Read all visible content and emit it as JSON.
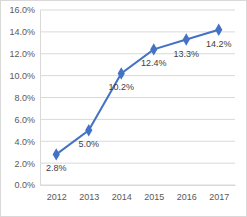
{
  "chart_data": {
    "type": "line",
    "categories": [
      "2012",
      "2013",
      "2014",
      "2015",
      "2016",
      "2017"
    ],
    "values": [
      2.8,
      5.0,
      10.2,
      12.4,
      13.3,
      14.2
    ],
    "value_labels": [
      "2.8%",
      "5.0%",
      "10.2%",
      "12.4%",
      "13.3%",
      "14.2%"
    ],
    "color": "#4472c4",
    "marker": "diamond",
    "ylim": [
      0,
      16
    ],
    "yticks": [
      {
        "value": 0,
        "label": "0.0%"
      },
      {
        "value": 2,
        "label": "2.0%"
      },
      {
        "value": 4,
        "label": "4.0%"
      },
      {
        "value": 6,
        "label": "6.0%"
      },
      {
        "value": 8,
        "label": "8.0%"
      },
      {
        "value": 10,
        "label": "10.0%"
      },
      {
        "value": 12,
        "label": "12.0%"
      },
      {
        "value": 14,
        "label": "14.0%"
      },
      {
        "value": 16,
        "label": "16.0%"
      }
    ],
    "grid": true,
    "data_labels": true
  }
}
